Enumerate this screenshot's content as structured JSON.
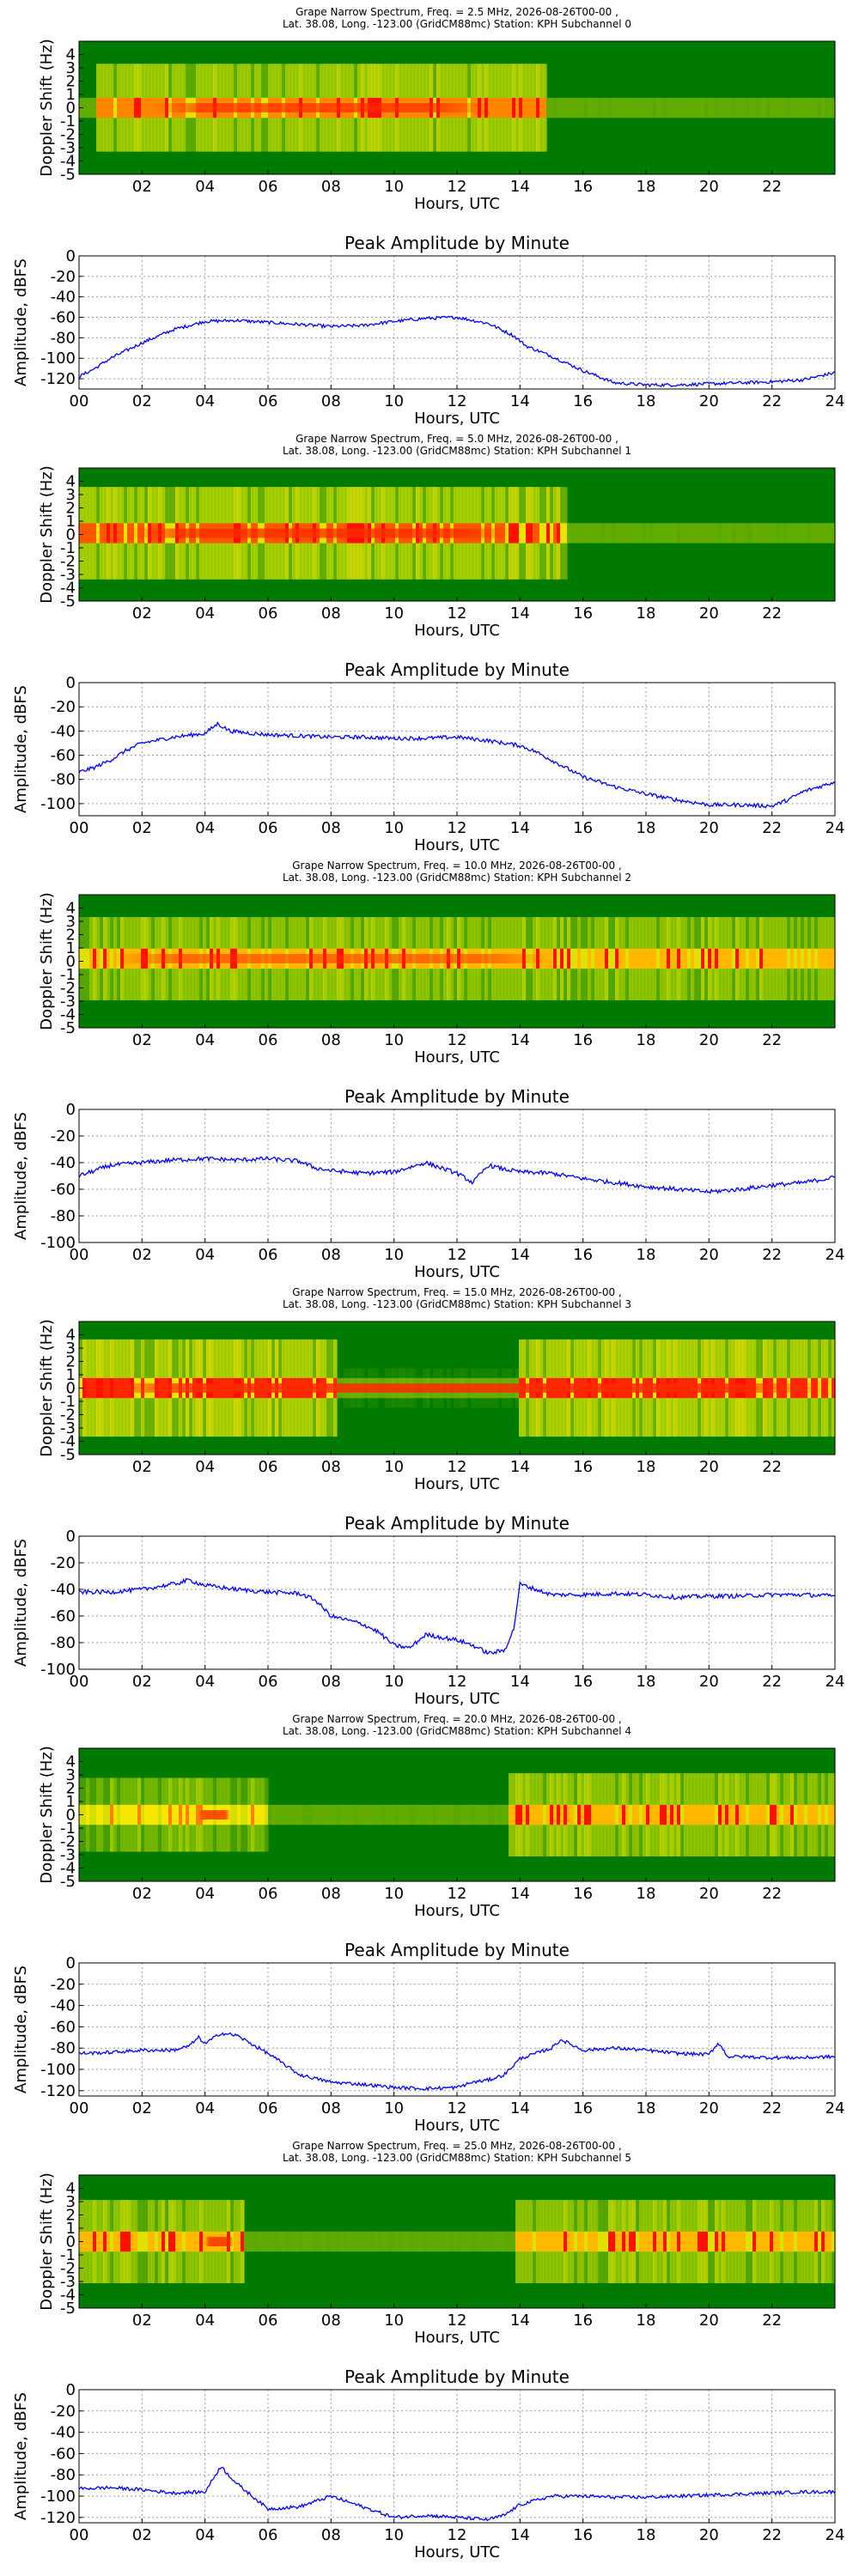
{
  "figure": {
    "spectrogram_colors": {
      "background": "#007a00",
      "mid": "#b6d800",
      "high": "#ffe800",
      "peak": "#ff1000"
    },
    "line_color": "#0000ff"
  },
  "chart_data": [
    {
      "type": "heatmap",
      "title_line1": "Grape Narrow Spectrum, Freq. = 2.5 MHz, 2026-08-26T00-00 ,",
      "title_line2": "Lat.  38.08, Long. -123.00 (GridCM88mc) Station: KPH Subchannel 0",
      "xlabel": "Hours, UTC",
      "ylabel": "Doppler Shift (Hz)",
      "xlim": [
        0,
        24
      ],
      "ylim": [
        -5,
        5
      ],
      "xticks": [
        "02",
        "04",
        "06",
        "08",
        "10",
        "12",
        "14",
        "16",
        "18",
        "20",
        "22"
      ],
      "yticks": [
        "4",
        "3",
        "2",
        "1",
        "0",
        "-1",
        "-2",
        "-3",
        "-4",
        "-5"
      ],
      "bright_segments": [
        [
          0.5,
          14.8,
          0.6
        ]
      ],
      "peak_center_hz": 0.0,
      "peak_hours": [
        2.3,
        13.0
      ],
      "peak_strength": 0.7
    },
    {
      "type": "line",
      "title": "Peak Amplitude by Minute",
      "xlabel": "Hours, UTC",
      "ylabel": "Amplitude, dBFS",
      "xlim": [
        0,
        24
      ],
      "ylim": [
        -130,
        0
      ],
      "grid": true,
      "xticks": [
        "00",
        "02",
        "04",
        "06",
        "08",
        "10",
        "12",
        "14",
        "16",
        "18",
        "20",
        "22",
        "24"
      ],
      "yticks": [
        "0",
        "-20",
        "-40",
        "-60",
        "-80",
        "-100",
        "-120"
      ],
      "ytick_values": [
        0,
        -20,
        -40,
        -60,
        -80,
        -100,
        -120
      ],
      "x": [
        0,
        0.5,
        1,
        2,
        3,
        4,
        5,
        6,
        7,
        8,
        9,
        10,
        11,
        12,
        13,
        13.8,
        14.2,
        14.6,
        15,
        15.5,
        16,
        16.5,
        17,
        18,
        19,
        20,
        21,
        22,
        23,
        24
      ],
      "y": [
        -118,
        -110,
        -100,
        -85,
        -72,
        -64,
        -63,
        -65,
        -67,
        -69,
        -68,
        -64,
        -61,
        -60,
        -66,
        -78,
        -88,
        -93,
        -98,
        -105,
        -112,
        -118,
        -124,
        -126,
        -126,
        -125,
        -124,
        -123,
        -121,
        -114
      ]
    },
    {
      "type": "heatmap",
      "title_line1": "Grape Narrow Spectrum, Freq. = 5.0 MHz, 2026-08-26T00-00 ,",
      "title_line2": "Lat.  38.08, Long. -123.00 (GridCM88mc) Station: KPH Subchannel 1",
      "xlabel": "Hours, UTC",
      "ylabel": "Doppler Shift (Hz)",
      "xlim": [
        0,
        24
      ],
      "ylim": [
        -5,
        5
      ],
      "xticks": [
        "02",
        "04",
        "06",
        "08",
        "10",
        "12",
        "14",
        "16",
        "18",
        "20",
        "22"
      ],
      "yticks": [
        "4",
        "3",
        "2",
        "1",
        "0",
        "-1",
        "-2",
        "-3",
        "-4",
        "-5"
      ],
      "bright_segments": [
        [
          0,
          15.5,
          0.65
        ]
      ],
      "peak_center_hz": 0.1,
      "peak_hours": [
        1.5,
        13.8
      ],
      "peak_strength": 0.75
    },
    {
      "type": "line",
      "title": "Peak Amplitude by Minute",
      "xlabel": "Hours, UTC",
      "ylabel": "Amplitude, dBFS",
      "xlim": [
        0,
        24
      ],
      "ylim": [
        -110,
        0
      ],
      "grid": true,
      "xticks": [
        "00",
        "02",
        "04",
        "06",
        "08",
        "10",
        "12",
        "14",
        "16",
        "18",
        "20",
        "22",
        "24"
      ],
      "yticks": [
        "0",
        "-20",
        "-40",
        "-60",
        "-80",
        "-100"
      ],
      "ytick_values": [
        0,
        -20,
        -40,
        -60,
        -80,
        -100
      ],
      "x": [
        0,
        0.5,
        1,
        1.5,
        2,
        3,
        4,
        4.4,
        4.8,
        5.5,
        6,
        7,
        8,
        9,
        10,
        11,
        12,
        13,
        14,
        14.5,
        15,
        15.5,
        16,
        16.5,
        17,
        18,
        19,
        20,
        21,
        22,
        22.5,
        23,
        24
      ],
      "y": [
        -74,
        -70,
        -64,
        -56,
        -50,
        -45,
        -42,
        -34,
        -40,
        -42,
        -43,
        -44,
        -45,
        -45,
        -46,
        -46,
        -45,
        -48,
        -52,
        -57,
        -64,
        -71,
        -78,
        -82,
        -86,
        -92,
        -97,
        -101,
        -101,
        -102,
        -97,
        -90,
        -82
      ]
    },
    {
      "type": "heatmap",
      "title_line1": "Grape Narrow Spectrum, Freq. = 10.0 MHz, 2026-08-26T00-00 ,",
      "title_line2": "Lat.  38.08, Long. -123.00 (GridCM88mc) Station: KPH Subchannel 2",
      "xlabel": "Hours, UTC",
      "ylabel": "Doppler Shift (Hz)",
      "xlim": [
        0,
        24
      ],
      "ylim": [
        -5,
        5
      ],
      "xticks": [
        "02",
        "04",
        "06",
        "08",
        "10",
        "12",
        "14",
        "16",
        "18",
        "20",
        "22"
      ],
      "yticks": [
        "4",
        "3",
        "2",
        "1",
        "0",
        "-1",
        "-2",
        "-3",
        "-4",
        "-5"
      ],
      "bright_segments": [
        [
          0,
          24,
          0.55
        ]
      ],
      "peak_center_hz": 0.2,
      "peak_hours": [
        1.0,
        15.0
      ],
      "peak_strength": 0.55
    },
    {
      "type": "line",
      "title": "Peak Amplitude by Minute",
      "xlabel": "Hours, UTC",
      "ylabel": "Amplitude, dBFS",
      "xlim": [
        0,
        24
      ],
      "ylim": [
        -100,
        0
      ],
      "grid": true,
      "xticks": [
        "00",
        "02",
        "04",
        "06",
        "08",
        "10",
        "12",
        "14",
        "16",
        "18",
        "20",
        "22",
        "24"
      ],
      "yticks": [
        "0",
        "-20",
        "-40",
        "-60",
        "-80",
        "-100"
      ],
      "ytick_values": [
        0,
        -20,
        -40,
        -60,
        -80,
        -100
      ],
      "x": [
        0,
        0.5,
        1,
        2,
        3,
        4,
        5,
        6,
        7,
        7.5,
        8,
        9,
        10,
        11,
        12,
        12.5,
        13,
        13.5,
        14,
        15,
        16,
        17,
        18,
        19,
        20,
        21,
        22,
        23,
        24
      ],
      "y": [
        -50,
        -46,
        -42,
        -40,
        -38,
        -37,
        -38,
        -37,
        -39,
        -44,
        -46,
        -48,
        -47,
        -40,
        -48,
        -55,
        -42,
        -45,
        -47,
        -48,
        -52,
        -55,
        -58,
        -60,
        -62,
        -60,
        -57,
        -55,
        -51
      ]
    },
    {
      "type": "heatmap",
      "title_line1": "Grape Narrow Spectrum, Freq. = 15.0 MHz, 2026-08-26T00-00 ,",
      "title_line2": "Lat.  38.08, Long. -123.00 (GridCM88mc) Station: KPH Subchannel 3",
      "xlabel": "Hours, UTC",
      "ylabel": "Doppler Shift (Hz)",
      "xlim": [
        0,
        24
      ],
      "ylim": [
        -5,
        5
      ],
      "xticks": [
        "02",
        "04",
        "06",
        "08",
        "10",
        "12",
        "14",
        "16",
        "18",
        "20",
        "22"
      ],
      "yticks": [
        "4",
        "3",
        "2",
        "1",
        "0",
        "-1",
        "-2",
        "-3",
        "-4",
        "-5"
      ],
      "bright_segments": [
        [
          0,
          8.2,
          0.7
        ],
        [
          8.2,
          14,
          0.08
        ],
        [
          14,
          24,
          0.7
        ]
      ],
      "peak_center_hz": 0.0,
      "peak_hours": [
        0,
        24
      ],
      "peak_strength": 0.85
    },
    {
      "type": "line",
      "title": "Peak Amplitude by Minute",
      "xlabel": "Hours, UTC",
      "ylabel": "Amplitude, dBFS",
      "xlim": [
        0,
        24
      ],
      "ylim": [
        -100,
        0
      ],
      "grid": true,
      "xticks": [
        "00",
        "02",
        "04",
        "06",
        "08",
        "10",
        "12",
        "14",
        "16",
        "18",
        "20",
        "22",
        "24"
      ],
      "yticks": [
        "0",
        "-20",
        "-40",
        "-60",
        "-80",
        "-100"
      ],
      "ytick_values": [
        0,
        -20,
        -40,
        -60,
        -80,
        -100
      ],
      "x": [
        0,
        1,
        2,
        3,
        3.5,
        4,
        5,
        6,
        7,
        7.5,
        8,
        9,
        9.5,
        10,
        10.5,
        11,
        12,
        12.5,
        13,
        13.5,
        13.8,
        14,
        15,
        16,
        17,
        18,
        19,
        20,
        21,
        22,
        23,
        24
      ],
      "y": [
        -42,
        -42,
        -40,
        -36,
        -33,
        -37,
        -40,
        -42,
        -43,
        -48,
        -60,
        -66,
        -72,
        -82,
        -84,
        -74,
        -78,
        -82,
        -88,
        -86,
        -70,
        -36,
        -44,
        -44,
        -43,
        -44,
        -46,
        -45,
        -45,
        -44,
        -44,
        -45
      ]
    },
    {
      "type": "heatmap",
      "title_line1": "Grape Narrow Spectrum, Freq. = 20.0 MHz, 2026-08-26T00-00 ,",
      "title_line2": "Lat.  38.08, Long. -123.00 (GridCM88mc) Station: KPH Subchannel 4",
      "xlabel": "Hours, UTC",
      "ylabel": "Doppler Shift (Hz)",
      "xlim": [
        0,
        24
      ],
      "ylim": [
        -5,
        5
      ],
      "xticks": [
        "02",
        "04",
        "06",
        "08",
        "10",
        "12",
        "14",
        "16",
        "18",
        "20",
        "22"
      ],
      "yticks": [
        "4",
        "3",
        "2",
        "1",
        "0",
        "-1",
        "-2",
        "-3",
        "-4",
        "-5"
      ],
      "bright_segments": [
        [
          0,
          6,
          0.45
        ],
        [
          6,
          13.6,
          0.05
        ],
        [
          13.6,
          24,
          0.55
        ]
      ],
      "peak_center_hz": 0.0,
      "peak_hours": [
        3.8,
        4.8
      ],
      "peak_strength": 0.8
    },
    {
      "type": "line",
      "title": "Peak Amplitude by Minute",
      "xlabel": "Hours, UTC",
      "ylabel": "Amplitude, dBFS",
      "xlim": [
        0,
        24
      ],
      "ylim": [
        -125,
        0
      ],
      "grid": true,
      "xticks": [
        "00",
        "02",
        "04",
        "06",
        "08",
        "10",
        "12",
        "14",
        "16",
        "18",
        "20",
        "22",
        "24"
      ],
      "yticks": [
        "0",
        "-20",
        "-40",
        "-60",
        "-80",
        "-100",
        "-120"
      ],
      "ytick_values": [
        0,
        -20,
        -40,
        -60,
        -80,
        -100,
        -120
      ],
      "x": [
        0,
        1,
        2,
        3,
        3.5,
        3.8,
        4,
        4.5,
        5,
        6,
        7,
        8,
        9,
        10,
        11,
        12,
        12.5,
        13,
        13.5,
        14,
        15,
        15.3,
        16,
        17,
        18,
        19,
        20,
        20.3,
        20.6,
        21,
        22,
        23,
        24
      ],
      "y": [
        -85,
        -84,
        -82,
        -82,
        -78,
        -70,
        -76,
        -66,
        -68,
        -85,
        -105,
        -112,
        -114,
        -117,
        -118,
        -117,
        -112,
        -110,
        -105,
        -90,
        -80,
        -72,
        -82,
        -80,
        -82,
        -85,
        -86,
        -75,
        -88,
        -88,
        -89,
        -89,
        -88
      ]
    },
    {
      "type": "heatmap",
      "title_line1": "Grape Narrow Spectrum, Freq. = 25.0 MHz, 2026-08-26T00-00 ,",
      "title_line2": "Lat.  38.08, Long. -123.00 (GridCM88mc) Station: KPH Subchannel 5",
      "xlabel": "Hours, UTC",
      "ylabel": "Doppler Shift (Hz)",
      "xlim": [
        0,
        24
      ],
      "ylim": [
        -5,
        5
      ],
      "xticks": [
        "02",
        "04",
        "06",
        "08",
        "10",
        "12",
        "14",
        "16",
        "18",
        "20",
        "22"
      ],
      "yticks": [
        "4",
        "3",
        "2",
        "1",
        "0",
        "-1",
        "-2",
        "-3",
        "-4",
        "-5"
      ],
      "bright_segments": [
        [
          0,
          5.2,
          0.55
        ],
        [
          5.2,
          13.8,
          0.04
        ],
        [
          13.8,
          24,
          0.55
        ]
      ],
      "peak_center_hz": 0.0,
      "peak_hours": [
        4.0,
        4.9
      ],
      "peak_strength": 0.8
    },
    {
      "type": "line",
      "title": "Peak Amplitude by Minute",
      "xlabel": "Hours, UTC",
      "ylabel": "Amplitude, dBFS",
      "xlim": [
        0,
        24
      ],
      "ylim": [
        -125,
        0
      ],
      "grid": true,
      "xticks": [
        "00",
        "02",
        "04",
        "06",
        "08",
        "10",
        "12",
        "14",
        "16",
        "18",
        "20",
        "22",
        "24"
      ],
      "yticks": [
        "0",
        "-20",
        "-40",
        "-60",
        "-80",
        "-100",
        "-120"
      ],
      "ytick_values": [
        0,
        -20,
        -40,
        -60,
        -80,
        -100,
        -120
      ],
      "x": [
        0,
        1,
        2,
        3,
        4,
        4.5,
        5,
        5.5,
        6,
        7,
        8,
        9,
        10,
        11,
        12,
        13,
        13.5,
        14,
        15,
        16,
        17,
        18,
        19,
        20,
        21,
        22,
        23,
        24
      ],
      "y": [
        -93,
        -92,
        -94,
        -97,
        -96,
        -72,
        -88,
        -100,
        -112,
        -110,
        -100,
        -110,
        -120,
        -118,
        -120,
        -122,
        -118,
        -108,
        -100,
        -100,
        -101,
        -101,
        -100,
        -99,
        -98,
        -97,
        -96,
        -96
      ]
    }
  ]
}
